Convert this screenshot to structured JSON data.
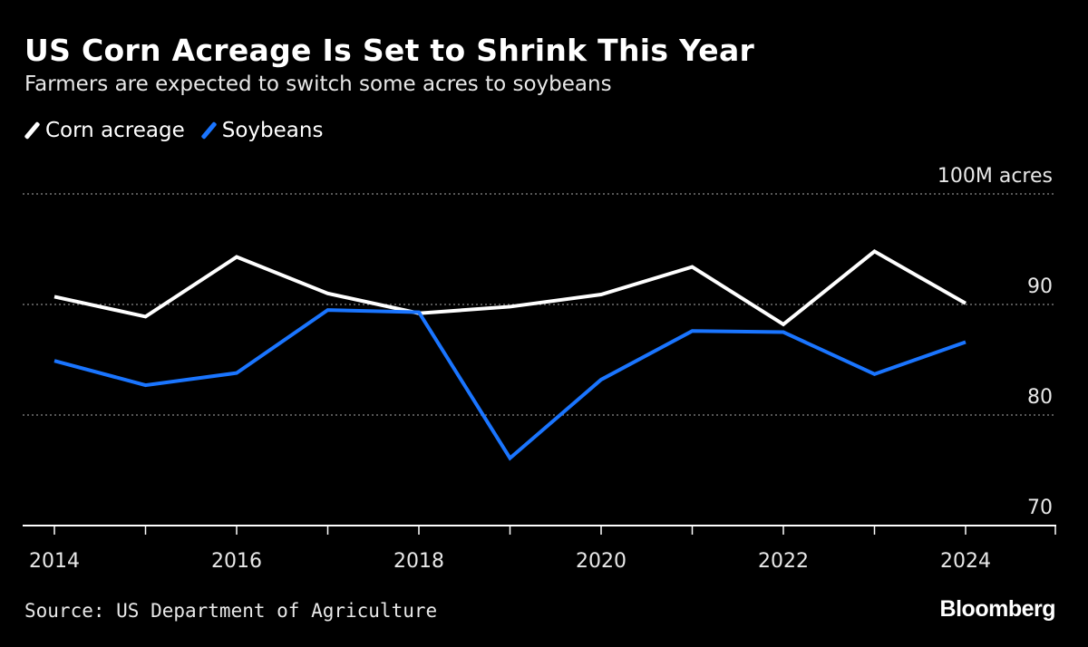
{
  "chart_data": {
    "type": "line",
    "title": "US Corn Acreage Is Set to Shrink This Year",
    "subtitle": "Farmers are expected to switch some acres to soybeans",
    "x": [
      2014,
      2015,
      2016,
      2017,
      2018,
      2019,
      2020,
      2021,
      2022,
      2023,
      2024
    ],
    "x_tick_labels": [
      "2014",
      "2016",
      "2018",
      "2020",
      "2022",
      "2024"
    ],
    "series": [
      {
        "name": "Corn acreage",
        "color": "#ffffff",
        "values": [
          90.7,
          88.9,
          94.3,
          91.0,
          89.2,
          89.8,
          90.9,
          93.4,
          88.2,
          94.8,
          90.1
        ]
      },
      {
        "name": "Soybeans",
        "color": "#1a75ff",
        "values": [
          84.9,
          82.7,
          83.8,
          89.5,
          89.3,
          76.1,
          83.2,
          87.6,
          87.5,
          83.7,
          86.6
        ]
      }
    ],
    "y_ticks": [
      70,
      80,
      90,
      100
    ],
    "y_tick_labels": [
      "70",
      "80",
      "90",
      "100M acres"
    ],
    "ylim": [
      70,
      100
    ],
    "xlim": [
      2013.65,
      2025
    ],
    "grid": "dotted horizontal",
    "legend_position": "top-left",
    "source": "Source: US Department of Agriculture"
  },
  "branding": {
    "logo": "Bloomberg"
  }
}
